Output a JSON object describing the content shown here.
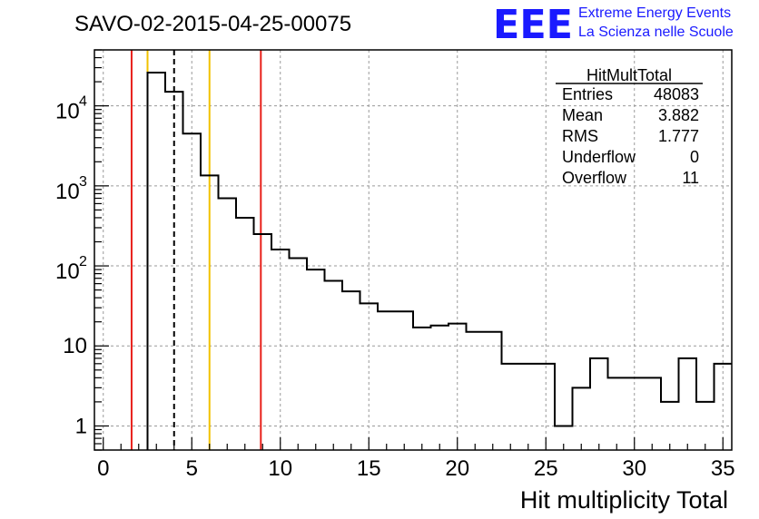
{
  "chart_data": {
    "type": "histogram",
    "title": "SAVO-02-2015-04-25-00075",
    "xlabel": "Hit multiplicity Total",
    "ylabel": "",
    "xlim": [
      -0.5,
      35.5
    ],
    "ylim": [
      0.5,
      50000
    ],
    "yscale": "log",
    "grid": true,
    "x_ticks": [
      "0",
      "5",
      "10",
      "15",
      "20",
      "25",
      "30",
      "35"
    ],
    "y_tick_labels": [
      {
        "value": 1,
        "base": "1",
        "exp": ""
      },
      {
        "value": 10,
        "base": "10",
        "exp": ""
      },
      {
        "value": 100,
        "base": "10",
        "exp": "2"
      },
      {
        "value": 1000,
        "base": "10",
        "exp": "3"
      },
      {
        "value": 10000,
        "base": "10",
        "exp": "4"
      }
    ],
    "bins": {
      "low_edges": [
        2.5,
        3.5,
        4.5,
        5.5,
        6.5,
        7.5,
        8.5,
        9.5,
        10.5,
        11.5,
        12.5,
        13.5,
        14.5,
        15.5,
        16.5,
        17.5,
        18.5,
        19.5,
        20.5,
        21.5,
        22.5,
        23.5,
        24.5,
        25.5,
        26.5,
        27.5,
        28.5,
        29.5,
        30.5,
        31.5,
        32.5,
        33.5,
        34.5
      ],
      "width": 1,
      "values": [
        26000,
        15000,
        4500,
        1350,
        700,
        400,
        250,
        160,
        125,
        90,
        65,
        48,
        34,
        27,
        27,
        17,
        18,
        19,
        15,
        15,
        6,
        6,
        6,
        1,
        3,
        7,
        4,
        4,
        4,
        2,
        7,
        2,
        6
      ]
    },
    "vertical_lines": [
      {
        "x": 1.6,
        "color": "#e8201a",
        "style": "solid"
      },
      {
        "x": 2.5,
        "color": "#f2c200",
        "style": "solid"
      },
      {
        "x": 4.0,
        "color": "#000000",
        "style": "dashed"
      },
      {
        "x": 6.0,
        "color": "#f2c200",
        "style": "solid"
      },
      {
        "x": 8.9,
        "color": "#e8201a",
        "style": "solid"
      }
    ],
    "stats_box": {
      "title": "HitMultTotal",
      "rows": [
        {
          "label": "Entries",
          "value": "48083"
        },
        {
          "label": "Mean",
          "value": "3.882"
        },
        {
          "label": "RMS",
          "value": "1.777"
        },
        {
          "label": "Underflow",
          "value": "0"
        },
        {
          "label": "Overflow",
          "value": "11"
        }
      ]
    }
  },
  "logo": {
    "mark": "EEE",
    "line1": "Extreme Energy Events",
    "line2": "La Scienza nelle Scuole"
  }
}
